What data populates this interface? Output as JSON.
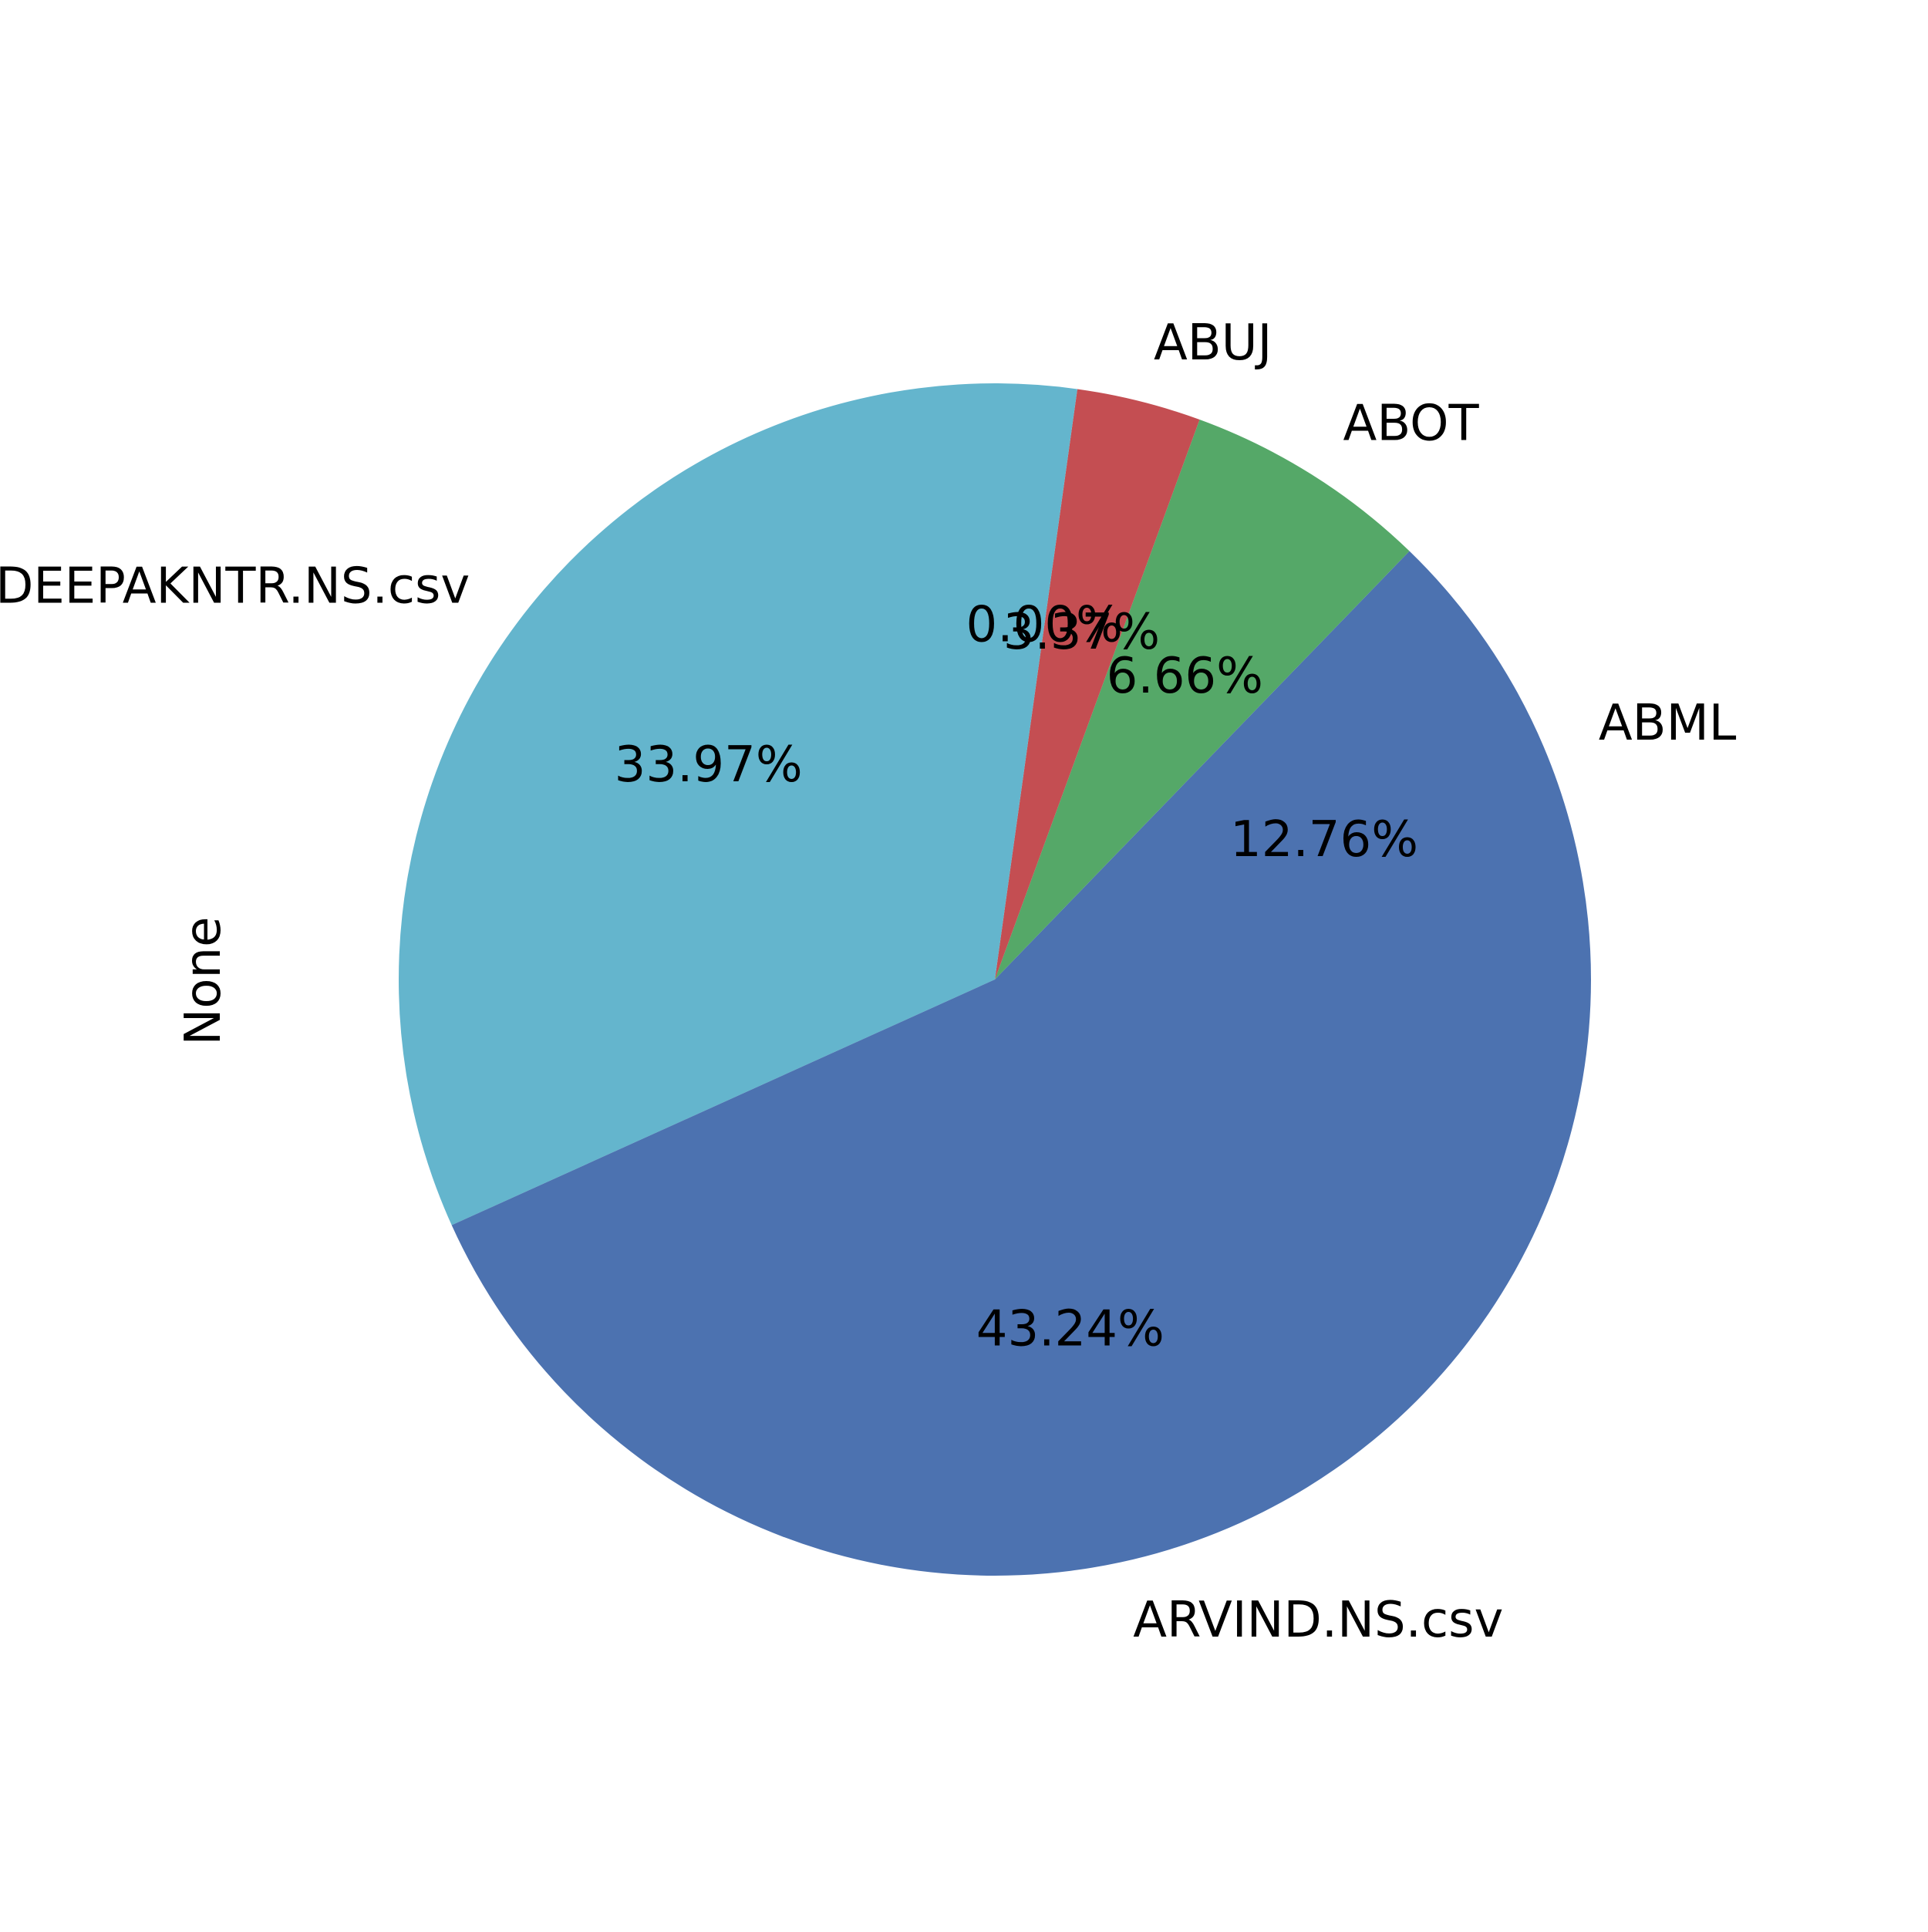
{
  "chart_data": {
    "type": "pie",
    "ylabel": "None",
    "start_angle_deg": 0,
    "direction": "counterclockwise",
    "slices": [
      {
        "label": "ABML",
        "value": 12.76,
        "pct_label": "12.76%",
        "color": "#4c72b0"
      },
      {
        "label": "ABOT",
        "value": 6.66,
        "pct_label": "6.66%",
        "color": "#55a868"
      },
      {
        "label": "ABUJ",
        "value": 3.37,
        "pct_label": "3.37%",
        "color": "#c44e52"
      },
      {
        "label": "",
        "value": 0.0,
        "pct_label": "0.00%",
        "color": "#8172b2"
      },
      {
        "label": "DEEPAKNTR.NS.csv",
        "value": 33.97,
        "pct_label": "33.97%",
        "color": "#64b5cd"
      },
      {
        "label": "ARVIND.NS.csv",
        "value": 43.24,
        "pct_label": "43.24%",
        "color": "#4c72b0"
      }
    ]
  }
}
